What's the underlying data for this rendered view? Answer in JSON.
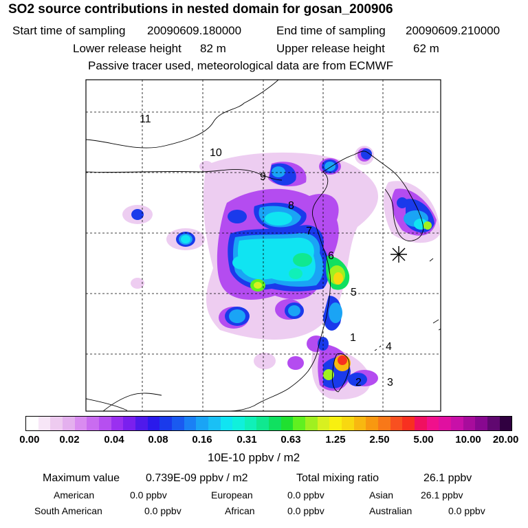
{
  "title": "SO2 source contributions in nested domain for gosan_200906",
  "sampling": {
    "start_label": "Start time of sampling",
    "start_value": "20090609.180000",
    "end_label": "End time of sampling",
    "end_value": "20090609.210000"
  },
  "release": {
    "lower_label": "Lower release height",
    "lower_value": "82 m",
    "upper_label": "Upper release height",
    "upper_value": "62 m"
  },
  "note": "Passive tracer used, meteorological data are from ECMWF",
  "map": {
    "region_labels": [
      "1",
      "2",
      "3",
      "4",
      "5",
      "6",
      "7",
      "8",
      "9",
      "10",
      "11"
    ],
    "station_marker": "measurement-site-star"
  },
  "colorbar": {
    "unit": "10E-10 ppbv / m2",
    "ticks": [
      "0.00",
      "0.02",
      "0.04",
      "0.08",
      "0.16",
      "0.31",
      "0.63",
      "1.25",
      "2.50",
      "5.00",
      "10.00",
      "20.00"
    ],
    "colors": [
      "#ffffff",
      "#f7e6f7",
      "#eecbf0",
      "#e4b0ee",
      "#d98cf0",
      "#c96cf0",
      "#b64ff0",
      "#9a30f0",
      "#7a20ee",
      "#4f1aeb",
      "#2a1aeb",
      "#1a3aeb",
      "#1a5af0",
      "#1a80f5",
      "#1aa4f5",
      "#1ac0f5",
      "#10e4f2",
      "#10f0dc",
      "#10f0b8",
      "#10e890",
      "#10e060",
      "#20e030",
      "#60f020",
      "#a0f020",
      "#d8f020",
      "#f8f010",
      "#f8d810",
      "#f8b810",
      "#f89810",
      "#f87818",
      "#f85020",
      "#f83020",
      "#f01060",
      "#f0108c",
      "#e010a0",
      "#c810a8",
      "#a80c9c",
      "#880890",
      "#600870",
      "#300040"
    ]
  },
  "stats": {
    "max_label": "Maximum value",
    "max_value": "0.739E-09 ppbv / m2",
    "total_label": "Total mixing ratio",
    "total_value": "26.1 ppbv",
    "american_label": "American",
    "american_value": "0.0 ppbv",
    "european_label": "European",
    "european_value": "0.0 ppbv",
    "asian_label": "Asian",
    "asian_value": "26.1 ppbv",
    "south_american_label": "South American",
    "south_american_value": "0.0 ppbv",
    "african_label": "African",
    "african_value": "0.0 ppbv",
    "australian_label": "Australian",
    "australian_value": "0.0 ppbv"
  }
}
